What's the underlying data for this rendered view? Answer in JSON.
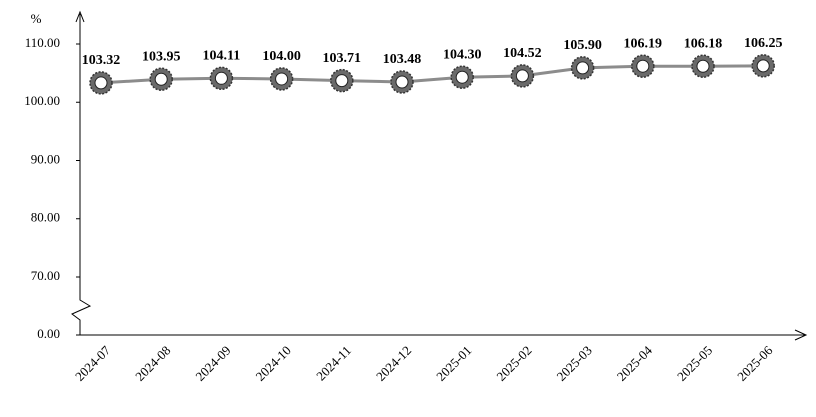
{
  "chart_data": {
    "type": "line",
    "y_label": "%",
    "categories": [
      "2024-07",
      "2024-08",
      "2024-09",
      "2024-10",
      "2024-11",
      "2024-12",
      "2025-01",
      "2025-02",
      "2025-03",
      "2025-04",
      "2025-05",
      "2025-06"
    ],
    "values": [
      103.32,
      103.95,
      104.11,
      104.0,
      103.71,
      103.48,
      104.3,
      104.52,
      105.9,
      106.19,
      106.18,
      106.25
    ],
    "value_labels": [
      "103.32",
      "103.95",
      "104.11",
      "104.00",
      "103.71",
      "103.48",
      "104.30",
      "104.52",
      "105.90",
      "106.19",
      "106.18",
      "106.25"
    ],
    "color": "#8c8c8c",
    "ylim": [
      0,
      110
    ],
    "axis_break": [
      0,
      70
    ],
    "yticks": [
      {
        "value": 0,
        "label": "0.00"
      },
      {
        "value": 70,
        "label": "70.00"
      },
      {
        "value": 80,
        "label": "80.00"
      },
      {
        "value": 90,
        "label": "90.00"
      },
      {
        "value": 100,
        "label": "100.00"
      },
      {
        "value": 110,
        "label": "110.00"
      }
    ],
    "grid": false
  }
}
